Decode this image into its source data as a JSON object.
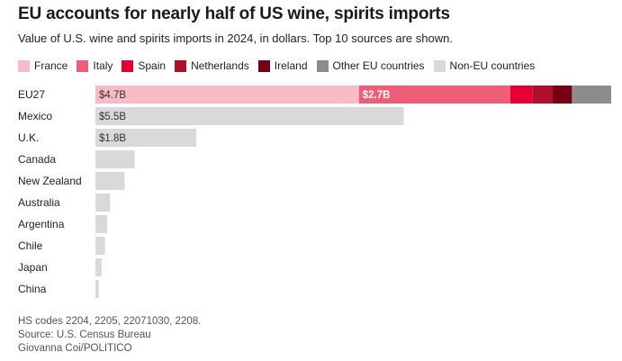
{
  "title": "EU accounts for nearly half of US wine, spirits imports",
  "subtitle": "Value of U.S. wine and spirits imports in 2024, in dollars. Top 10 sources are shown.",
  "legend": [
    {
      "label": "France",
      "color": "#f7bcc7"
    },
    {
      "label": "Italy",
      "color": "#ef5e78"
    },
    {
      "label": "Spain",
      "color": "#e30034"
    },
    {
      "label": "Netherlands",
      "color": "#b0102c"
    },
    {
      "label": "Ireland",
      "color": "#770013"
    },
    {
      "label": "Other EU countries",
      "color": "#8c8c8c"
    },
    {
      "label": "Non-EU countries",
      "color": "#d9d9d9"
    }
  ],
  "chart_data": {
    "type": "bar",
    "orientation": "horizontal",
    "stacked": true,
    "categories": [
      "EU27",
      "Mexico",
      "U.K.",
      "Canada",
      "New Zealand",
      "Australia",
      "Argentina",
      "Chile",
      "Japan",
      "China"
    ],
    "rows": [
      {
        "category": "EU27",
        "segments": [
          {
            "series": "France",
            "value": 4.7,
            "label": "$4.7B"
          },
          {
            "series": "Italy",
            "value": 2.7,
            "label": "$2.7B"
          },
          {
            "series": "Spain",
            "value": 0.4
          },
          {
            "series": "Netherlands",
            "value": 0.35
          },
          {
            "series": "Ireland",
            "value": 0.35
          },
          {
            "series": "Other EU countries",
            "value": 0.7
          }
        ]
      },
      {
        "category": "Mexico",
        "segments": [
          {
            "series": "Non-EU countries",
            "value": 5.5,
            "label": "$5.5B"
          }
        ]
      },
      {
        "category": "U.K.",
        "segments": [
          {
            "series": "Non-EU countries",
            "value": 1.8,
            "label": "$1.8B"
          }
        ]
      },
      {
        "category": "Canada",
        "segments": [
          {
            "series": "Non-EU countries",
            "value": 0.7
          }
        ]
      },
      {
        "category": "New Zealand",
        "segments": [
          {
            "series": "Non-EU countries",
            "value": 0.52
          }
        ]
      },
      {
        "category": "Australia",
        "segments": [
          {
            "series": "Non-EU countries",
            "value": 0.26
          }
        ]
      },
      {
        "category": "Argentina",
        "segments": [
          {
            "series": "Non-EU countries",
            "value": 0.21
          }
        ]
      },
      {
        "category": "Chile",
        "segments": [
          {
            "series": "Non-EU countries",
            "value": 0.17
          }
        ]
      },
      {
        "category": "Japan",
        "segments": [
          {
            "series": "Non-EU countries",
            "value": 0.11
          }
        ]
      },
      {
        "category": "China",
        "segments": [
          {
            "series": "Non-EU countries",
            "value": 0.06
          }
        ]
      }
    ],
    "units": "billions of dollars",
    "xlim": [
      0,
      9.2
    ],
    "grid": false
  },
  "footer": {
    "line1": "HS codes 2204, 2205, 22071030, 2208.",
    "line2": "Source: U.S. Census Bureau",
    "line3": "Giovanna Coi/POLITICO"
  }
}
